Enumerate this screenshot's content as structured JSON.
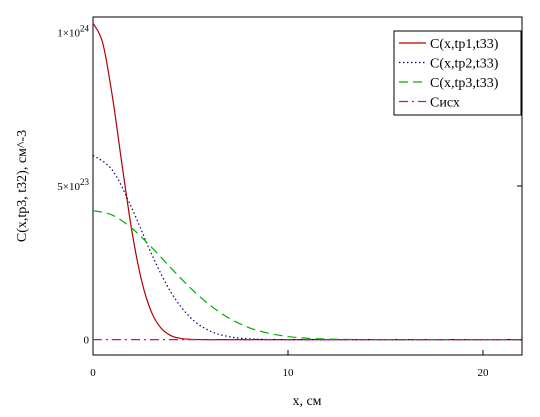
{
  "chart_data": {
    "type": "line",
    "xlabel": "x, см",
    "ylabel": "C(x,tp3, t32), см^-3",
    "xlim": [
      0,
      22
    ],
    "ylim": [
      -5e+22,
      1.05e+24
    ],
    "x_ticks": [
      {
        "value": 0,
        "label": "0"
      },
      {
        "value": 10,
        "label": "10"
      },
      {
        "value": 20,
        "label": "20"
      }
    ],
    "y_ticks": [
      {
        "value": 0,
        "label": "0"
      },
      {
        "value": 5e+23,
        "label": "5×10",
        "exp": "23"
      },
      {
        "value": 1e+24,
        "label": "1×10",
        "exp": "24"
      }
    ],
    "grid": false,
    "legend_position": "top-right",
    "series": [
      {
        "name": "C(x,tp1,t33)",
        "color": "#b00000",
        "dash": "solid",
        "x": [
          0,
          0.5,
          1,
          1.5,
          2,
          2.5,
          3,
          3.5,
          4,
          4.5,
          5,
          5.5,
          6,
          7,
          8,
          10,
          22
        ],
        "y": [
          1.03e+24,
          9.65e+23,
          7.89e+23,
          5.64e+23,
          3.51e+23,
          1.9e+23,
          8.94e+22,
          3.65e+22,
          1.29e+22,
          4e+21,
          1e+21,
          2e+20,
          5e+19,
          0,
          0,
          0,
          0
        ]
      },
      {
        "name": "C(x,tp2,t33)",
        "color": "#00007f",
        "dash": "dot",
        "x": [
          0,
          1,
          2,
          3,
          4,
          5,
          6,
          7,
          8,
          9,
          10,
          11,
          12,
          22
        ],
        "y": [
          6e+23,
          5.51e+23,
          4.27e+23,
          2.79e+23,
          1.54e+23,
          7.16e+22,
          2.81e+22,
          9.3e+21,
          2.6e+21,
          6e+20,
          1e+20,
          0,
          0,
          0
        ]
      },
      {
        "name": "C(x,tp3,t33)",
        "color": "#00b000",
        "dash": "dash",
        "x": [
          0,
          1,
          2,
          3,
          4,
          5,
          6,
          7,
          8,
          9,
          10,
          11,
          12,
          13,
          14,
          15,
          22
        ],
        "y": [
          4.2e+23,
          4.05e+23,
          3.62e+23,
          3.01e+23,
          2.33e+23,
          1.68e+23,
          1.12e+23,
          6.9e+22,
          3.9e+22,
          2.1e+22,
          1e+22,
          4.5e+21,
          1.8e+21,
          6e+20,
          2e+20,
          0,
          0
        ]
      },
      {
        "name": "Cисх",
        "color": "#cc00cc",
        "dash": "dashdot",
        "x": [
          0,
          22
        ],
        "y": [
          0,
          0
        ]
      }
    ]
  }
}
